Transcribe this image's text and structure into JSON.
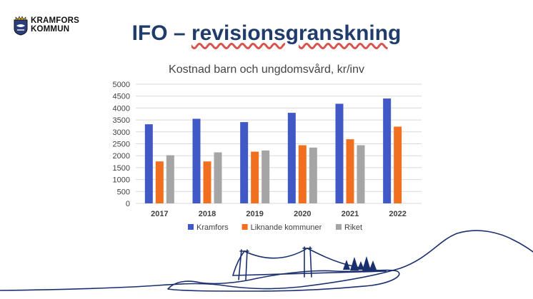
{
  "header": {
    "logo_line1": "KRAMFORS",
    "logo_line2": "KOMMUN",
    "title_prefix": "IFO – ",
    "title_main": "revisionsgranskning"
  },
  "chart_data": {
    "type": "bar",
    "title": "Kostnad barn och ungdomsvård, kr/inv",
    "categories": [
      "2017",
      "2018",
      "2019",
      "2020",
      "2021",
      "2022"
    ],
    "series": [
      {
        "name": "Kramfors",
        "color": "#4159c7",
        "values": [
          3320,
          3550,
          3410,
          3800,
          4180,
          4400
        ]
      },
      {
        "name": "Liknande kommuner",
        "color": "#f07020",
        "values": [
          1760,
          1760,
          2170,
          2440,
          2690,
          3220
        ]
      },
      {
        "name": "Riket",
        "color": "#a5a5a5",
        "values": [
          2020,
          2140,
          2220,
          2340,
          2440,
          null
        ]
      }
    ],
    "ylim": [
      0,
      5000
    ],
    "yticks": [
      "0",
      "500",
      "1000",
      "1500",
      "2000",
      "2500",
      "3000",
      "3500",
      "4000",
      "4500",
      "5000"
    ],
    "grid": true,
    "legend": "bottom"
  },
  "colors": {
    "title": "#1f3c6b",
    "grid": "#d9d9d9",
    "text": "#404040",
    "line": "#1a2f6e"
  }
}
